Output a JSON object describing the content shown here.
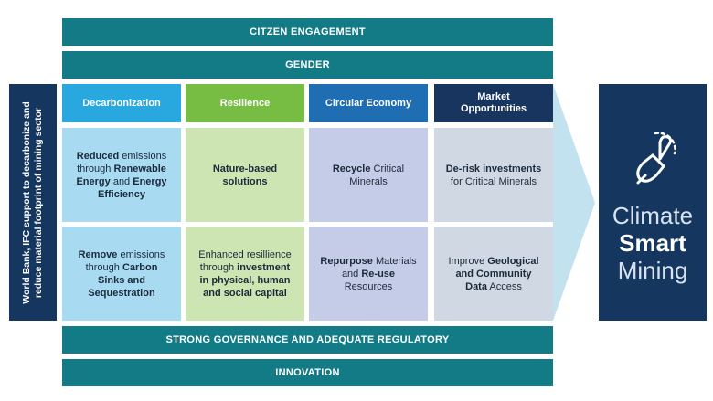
{
  "top_bars": [
    "CITZEN ENGAGEMENT",
    "GENDER"
  ],
  "side_label": "World Bank, IFC support to decarbonize and reduce material footprint of mining sector",
  "columns": [
    {
      "title": "Decarbonization",
      "color": "#29a8e0",
      "cell_color": "#a8dbf2"
    },
    {
      "title": "Resilience",
      "color": "#77bc43",
      "cell_color": "#cde4b3"
    },
    {
      "title": "Circular Economy",
      "color": "#1f6db3",
      "cell_color": "#c5cce7"
    },
    {
      "title": "Market Opportunities",
      "color": "#17355f",
      "cell_color": "#d0d8e3"
    }
  ],
  "rows": [
    [
      [
        {
          "text": "Reduced",
          "bold": true
        },
        {
          "text": " emissions through ",
          "bold": false
        },
        {
          "text": "Renewable Energy",
          "bold": true
        },
        {
          "text": " and ",
          "bold": false
        },
        {
          "text": "Energy Efficiency",
          "bold": true
        }
      ],
      [
        {
          "text": "Nature-based solutions",
          "bold": true
        }
      ],
      [
        {
          "text": "Recycle",
          "bold": true
        },
        {
          "text": " Critical Minerals",
          "bold": false
        }
      ],
      [
        {
          "text": "De-risk investments",
          "bold": true
        },
        {
          "text": " for Critical Minerals",
          "bold": false
        }
      ]
    ],
    [
      [
        {
          "text": "Remove",
          "bold": true
        },
        {
          "text": " emissions through ",
          "bold": false
        },
        {
          "text": "Carbon Sinks and Sequestration",
          "bold": true
        }
      ],
      [
        {
          "text": "Enhanced resillience through ",
          "bold": false
        },
        {
          "text": "investment in physical, human and social capital",
          "bold": true
        }
      ],
      [
        {
          "text": "Repurpose",
          "bold": true
        },
        {
          "text": " Materials and ",
          "bold": false
        },
        {
          "text": "Re-use",
          "bold": true
        },
        {
          "text": " Resources",
          "bold": false
        }
      ],
      [
        {
          "text": "Improve ",
          "bold": false
        },
        {
          "text": "Geological and Community Data",
          "bold": true
        },
        {
          "text": " Access",
          "bold": false
        }
      ]
    ]
  ],
  "bottom_bars": [
    "STRONG GOVERNANCE AND ADEQUATE REGULATORY",
    "INNOVATION"
  ],
  "result": [
    "Climate",
    "Smart",
    "Mining"
  ]
}
